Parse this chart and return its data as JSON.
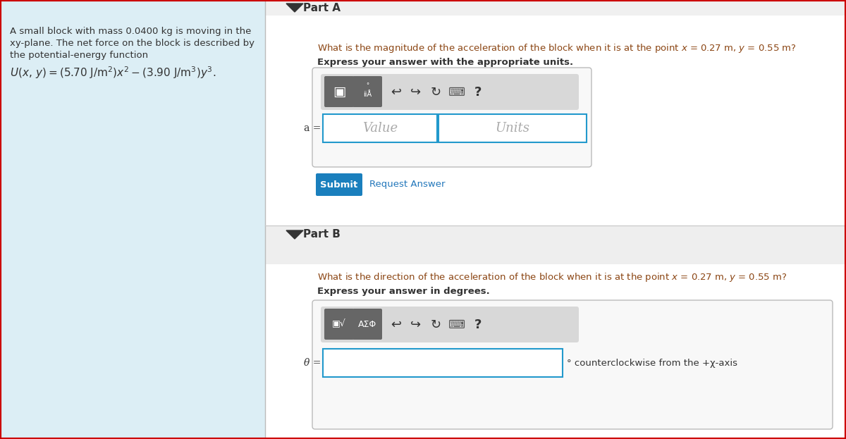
{
  "bg_color": "#ffffff",
  "outer_border_color": "#cc0000",
  "left_panel_bg": "#dceef5",
  "left_panel_text_line1": "A small block with mass 0.0400 kg is moving in the",
  "left_panel_text_line2": "xy-plane. The net force on the block is described by",
  "left_panel_text_line3": "the potential-energy function",
  "part_a_label": "Part A",
  "part_a_question": "What is the magnitude of the acceleration of the block when it is at the point $x$ = 0.27 m, $y$ = 0.55 m?",
  "part_a_instruction": "Express your answer with the appropriate units.",
  "part_a_label_text": "a =",
  "part_a_value_placeholder": "Value",
  "part_a_units_placeholder": "Units",
  "submit_btn_text": "Submit",
  "submit_btn_color": "#1a7fbd",
  "request_answer_text": "Request Answer",
  "request_answer_color": "#2277bb",
  "part_b_label": "Part B",
  "part_b_question": "What is the direction of the acceleration of the block when it is at the point $x$ = 0.27 m, $y$ = 0.55 m?",
  "part_b_instruction": "Express your answer in degrees.",
  "part_b_label_text": "θ =",
  "part_b_suffix": "° counterclockwise from the +χ-axis",
  "toolbar_bg": "#888888",
  "toolbar_inner_bg": "#e8e8e8",
  "input_border_color": "#2299cc",
  "dark_text": "#333333",
  "brown_text": "#8b4513",
  "part_header_bg": "#f0f0f0",
  "part_b_header_bg": "#e8e8e8",
  "divider_color": "#cccccc"
}
